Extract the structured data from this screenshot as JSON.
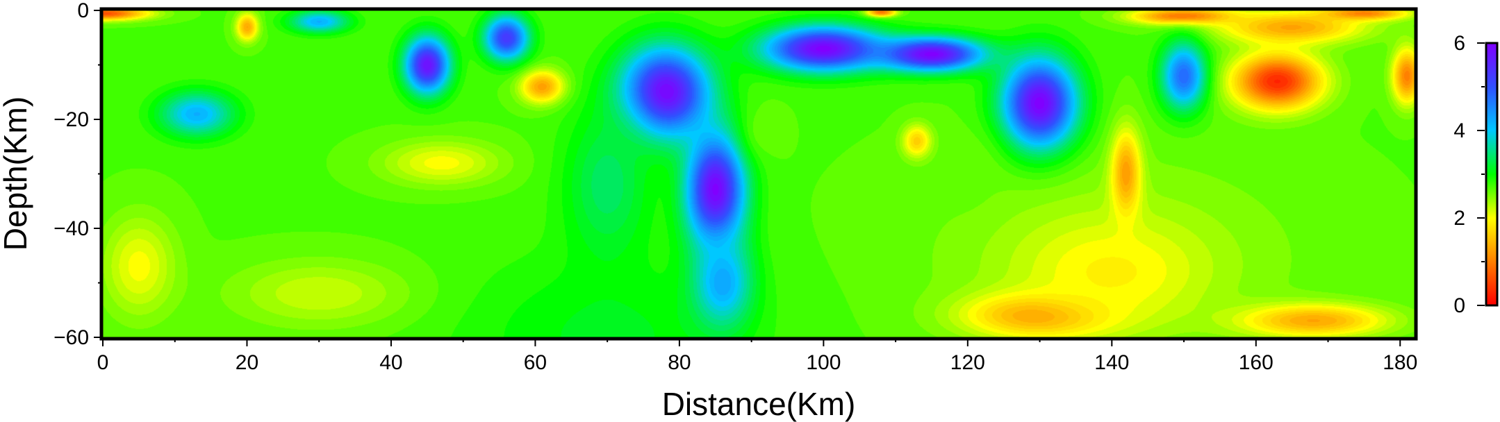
{
  "chart_data": {
    "type": "heatmap",
    "title": "",
    "xlabel": "Distance(Km)",
    "ylabel": "Depth(Km)",
    "xlim": [
      0,
      182
    ],
    "ylim": [
      -60,
      0
    ],
    "x_ticks": [
      0,
      20,
      40,
      60,
      80,
      100,
      120,
      140,
      160,
      180
    ],
    "x_minor_step": 10,
    "y_ticks": [
      0,
      -20,
      -40,
      -60
    ],
    "y_minor_step": 10,
    "colorbar": {
      "range": [
        0,
        6
      ],
      "ticks": [
        0,
        2,
        4,
        6
      ],
      "minor_step": 1,
      "colormap": "rainbow (red at 0, through orange, yellow, green, cyan, blue, to purple at 6)"
    },
    "grid": false,
    "anomalies": [
      {
        "x": 0,
        "y": -0.5,
        "value": 0.6,
        "sx": 6,
        "sy": 1.2
      },
      {
        "x": 20,
        "y": -3,
        "value": 1.3,
        "sx": 1.5,
        "sy": 2.5
      },
      {
        "x": 108,
        "y": -0.3,
        "value": 0.8,
        "sx": 2,
        "sy": 0.8
      },
      {
        "x": 150,
        "y": -1,
        "value": 0.8,
        "sx": 7,
        "sy": 1.5
      },
      {
        "x": 165,
        "y": -3,
        "value": 1.3,
        "sx": 10,
        "sy": 3
      },
      {
        "x": 175,
        "y": -0.5,
        "value": 1.0,
        "sx": 6,
        "sy": 1.2
      },
      {
        "x": 163,
        "y": -13,
        "value": 0.3,
        "sx": 6,
        "sy": 5
      },
      {
        "x": 181,
        "y": -12,
        "value": 1.0,
        "sx": 2,
        "sy": 5
      },
      {
        "x": 61,
        "y": -14,
        "value": 1.2,
        "sx": 3,
        "sy": 3
      },
      {
        "x": 113,
        "y": -24,
        "value": 1.6,
        "sx": 2,
        "sy": 3
      },
      {
        "x": 142,
        "y": -30,
        "value": 1.2,
        "sx": 2,
        "sy": 8
      },
      {
        "x": 130,
        "y": -56,
        "value": 1.2,
        "sx": 10,
        "sy": 4
      },
      {
        "x": 168,
        "y": -57,
        "value": 1.3,
        "sx": 10,
        "sy": 3
      },
      {
        "x": 140,
        "y": -48,
        "value": 1.9,
        "sx": 12,
        "sy": 9
      },
      {
        "x": 47,
        "y": -28,
        "value": 2.0,
        "sx": 8,
        "sy": 4
      },
      {
        "x": 5,
        "y": -47,
        "value": 2.0,
        "sx": 5,
        "sy": 9
      },
      {
        "x": 30,
        "y": -52,
        "value": 2.2,
        "sx": 12,
        "sy": 6
      },
      {
        "x": 45,
        "y": -10,
        "value": 5.8,
        "sx": 3,
        "sy": 5
      },
      {
        "x": 56,
        "y": -5,
        "value": 5.3,
        "sx": 3,
        "sy": 4
      },
      {
        "x": 30,
        "y": -2,
        "value": 4.2,
        "sx": 4,
        "sy": 2
      },
      {
        "x": 78,
        "y": -15,
        "value": 6.0,
        "sx": 6,
        "sy": 8
      },
      {
        "x": 85,
        "y": -33,
        "value": 6.0,
        "sx": 4,
        "sy": 10
      },
      {
        "x": 86,
        "y": -50,
        "value": 4.3,
        "sx": 4,
        "sy": 8
      },
      {
        "x": 100,
        "y": -7,
        "value": 6.0,
        "sx": 8,
        "sy": 4
      },
      {
        "x": 115,
        "y": -8,
        "value": 6.0,
        "sx": 7,
        "sy": 3
      },
      {
        "x": 130,
        "y": -17,
        "value": 6.0,
        "sx": 5,
        "sy": 8
      },
      {
        "x": 150,
        "y": -12,
        "value": 4.8,
        "sx": 3,
        "sy": 6
      },
      {
        "x": 13,
        "y": -19,
        "value": 4.2,
        "sx": 5,
        "sy": 4
      },
      {
        "x": 92,
        "y": -22,
        "value": 2.6,
        "sx": 3,
        "sy": 5
      },
      {
        "x": 70,
        "y": -32,
        "value": 3.4,
        "sx": 6,
        "sy": 14
      },
      {
        "x": 120,
        "y": -30,
        "value": 2.6,
        "sx": 4,
        "sy": 7
      }
    ]
  }
}
